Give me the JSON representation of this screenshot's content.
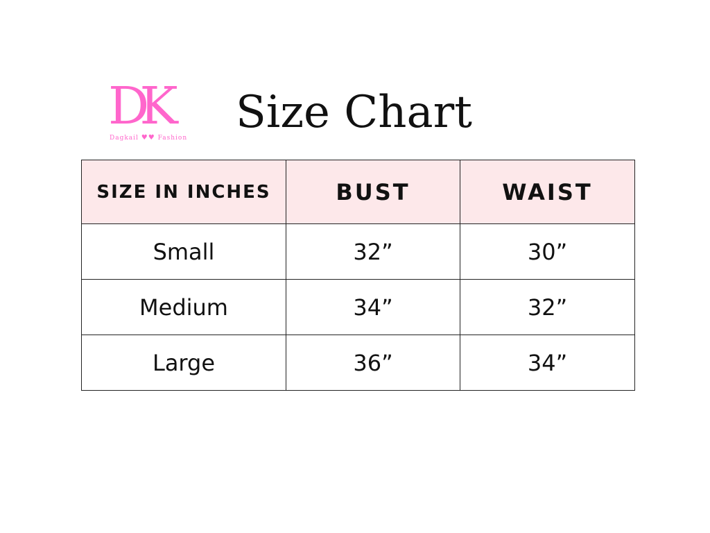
{
  "logo": {
    "letters": "DK",
    "brand_left": "Dagkail",
    "brand_right": "Fashion",
    "color": "#ff66cc"
  },
  "title": "Size Chart",
  "table": {
    "headers": [
      "SIZE IN INCHES",
      "BUST",
      "WAIST"
    ],
    "header_bg": "#fde8ea",
    "rows": [
      [
        "Small",
        "32”",
        "30”"
      ],
      [
        "Medium",
        "34”",
        "32”"
      ],
      [
        "Large",
        "36”",
        "34”"
      ]
    ]
  }
}
